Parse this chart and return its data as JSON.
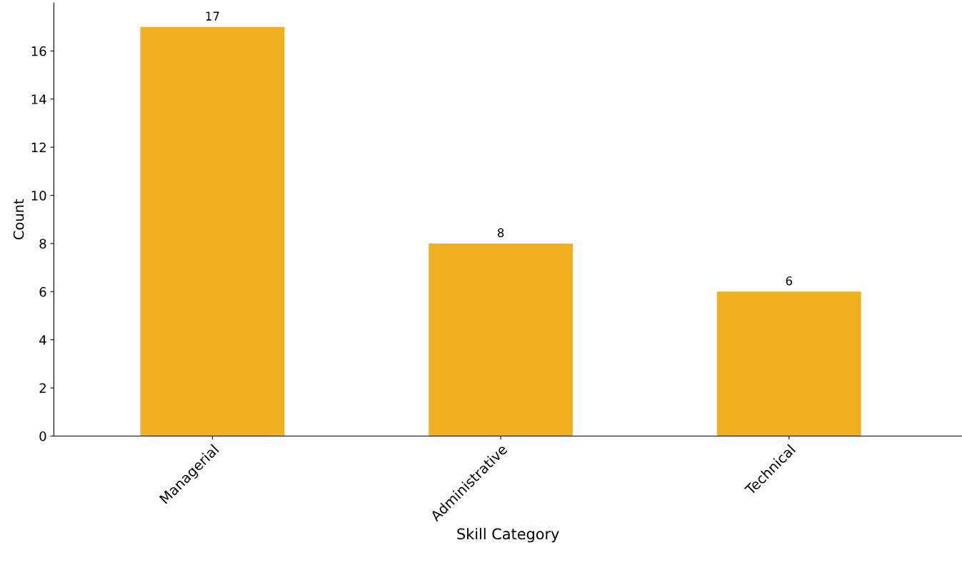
{
  "chart_data": {
    "type": "bar",
    "xlabel": "Skill Category",
    "ylabel": "Count",
    "categories": [
      "Managerial",
      "Administrative",
      "Technical"
    ],
    "values": [
      17,
      8,
      6
    ],
    "color": "#f0b020",
    "ylim": [
      0,
      18
    ],
    "yticks": [
      0,
      2,
      4,
      6,
      8,
      10,
      12,
      14,
      16
    ],
    "grid": false,
    "data_labels": true
  }
}
